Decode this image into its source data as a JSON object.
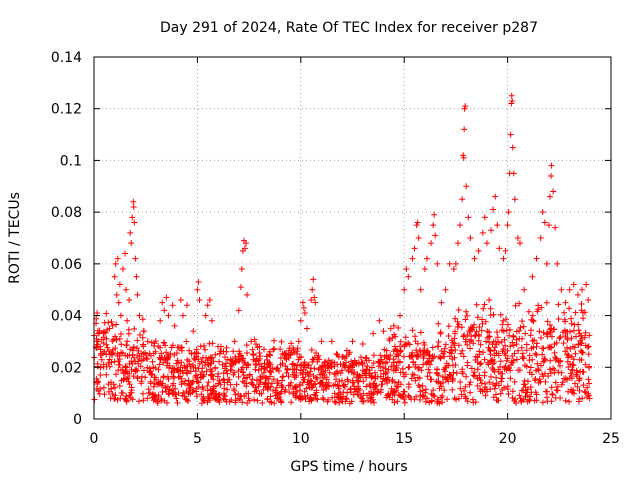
{
  "chart_data": {
    "type": "scatter",
    "title": "Day 291 of 2024, Rate Of TEC Index for receiver p287",
    "xlabel": "GPS time / hours",
    "ylabel": "ROTI / TECUs",
    "xlim": [
      0,
      25
    ],
    "ylim": [
      0,
      0.14
    ],
    "x_ticks": [
      0,
      5,
      10,
      15,
      20,
      25
    ],
    "x_tick_labels": [
      "0",
      "5",
      "10",
      "15",
      "20",
      "25"
    ],
    "y_ticks": [
      0,
      0.02,
      0.04,
      0.06,
      0.08,
      0.1,
      0.12,
      0.14
    ],
    "y_tick_labels": [
      "0",
      "0.02",
      "0.04",
      "0.06",
      "0.08",
      "0.1",
      "0.12",
      "0.14"
    ],
    "grid": true,
    "marker": "plus",
    "color": "#ff0000",
    "series": [
      {
        "points": [
          [
            0.1,
            0.037
          ],
          [
            0.15,
            0.041
          ],
          [
            0.2,
            0.033
          ],
          [
            0.3,
            0.028
          ],
          [
            0.5,
            0.026
          ],
          [
            0.6,
            0.031
          ],
          [
            0.9,
            0.036
          ],
          [
            1.0,
            0.055
          ],
          [
            1.05,
            0.06
          ],
          [
            1.1,
            0.048
          ],
          [
            1.15,
            0.062
          ],
          [
            1.2,
            0.045
          ],
          [
            1.25,
            0.052
          ],
          [
            1.3,
            0.04
          ],
          [
            1.4,
            0.058
          ],
          [
            1.5,
            0.064
          ],
          [
            1.55,
            0.05
          ],
          [
            1.6,
            0.038
          ],
          [
            1.7,
            0.046
          ],
          [
            1.75,
            0.072
          ],
          [
            1.8,
            0.068
          ],
          [
            1.85,
            0.078
          ],
          [
            1.9,
            0.084
          ],
          [
            1.92,
            0.082
          ],
          [
            1.95,
            0.076
          ],
          [
            2.0,
            0.062
          ],
          [
            2.05,
            0.055
          ],
          [
            2.1,
            0.048
          ],
          [
            2.2,
            0.04
          ],
          [
            2.4,
            0.034
          ],
          [
            2.6,
            0.03
          ],
          [
            3.2,
            0.038
          ],
          [
            3.3,
            0.045
          ],
          [
            3.4,
            0.042
          ],
          [
            3.5,
            0.047
          ],
          [
            3.6,
            0.04
          ],
          [
            3.8,
            0.044
          ],
          [
            3.9,
            0.036
          ],
          [
            4.2,
            0.046
          ],
          [
            4.3,
            0.04
          ],
          [
            4.5,
            0.044
          ],
          [
            4.8,
            0.034
          ],
          [
            5.0,
            0.05
          ],
          [
            5.05,
            0.053
          ],
          [
            5.1,
            0.046
          ],
          [
            5.4,
            0.04
          ],
          [
            5.5,
            0.044
          ],
          [
            5.6,
            0.046
          ],
          [
            5.7,
            0.038
          ],
          [
            6.0,
            0.028
          ],
          [
            6.4,
            0.026
          ],
          [
            6.8,
            0.03
          ],
          [
            7.0,
            0.042
          ],
          [
            7.1,
            0.051
          ],
          [
            7.15,
            0.058
          ],
          [
            7.2,
            0.065
          ],
          [
            7.25,
            0.069
          ],
          [
            7.3,
            0.066
          ],
          [
            7.35,
            0.068
          ],
          [
            7.4,
            0.048
          ],
          [
            7.6,
            0.03
          ],
          [
            8.0,
            0.028
          ],
          [
            8.5,
            0.026
          ],
          [
            9.0,
            0.027
          ],
          [
            9.5,
            0.025
          ],
          [
            9.9,
            0.03
          ],
          [
            10.0,
            0.038
          ],
          [
            10.1,
            0.045
          ],
          [
            10.15,
            0.043
          ],
          [
            10.2,
            0.041
          ],
          [
            10.3,
            0.035
          ],
          [
            10.5,
            0.046
          ],
          [
            10.55,
            0.05
          ],
          [
            10.6,
            0.054
          ],
          [
            10.65,
            0.047
          ],
          [
            10.7,
            0.045
          ],
          [
            11.0,
            0.03
          ],
          [
            11.5,
            0.03
          ],
          [
            12.0,
            0.024
          ],
          [
            12.5,
            0.03
          ],
          [
            13.0,
            0.029
          ],
          [
            13.5,
            0.033
          ],
          [
            13.8,
            0.038
          ],
          [
            14.0,
            0.034
          ],
          [
            14.5,
            0.036
          ],
          [
            14.8,
            0.04
          ],
          [
            15.0,
            0.05
          ],
          [
            15.1,
            0.058
          ],
          [
            15.2,
            0.055
          ],
          [
            15.4,
            0.062
          ],
          [
            15.5,
            0.066
          ],
          [
            15.6,
            0.075
          ],
          [
            15.65,
            0.076
          ],
          [
            15.7,
            0.07
          ],
          [
            15.8,
            0.05
          ],
          [
            16.0,
            0.058
          ],
          [
            16.1,
            0.062
          ],
          [
            16.3,
            0.068
          ],
          [
            16.4,
            0.075
          ],
          [
            16.45,
            0.079
          ],
          [
            16.5,
            0.071
          ],
          [
            16.6,
            0.06
          ],
          [
            16.8,
            0.045
          ],
          [
            17.0,
            0.05
          ],
          [
            17.2,
            0.06
          ],
          [
            17.4,
            0.058
          ],
          [
            17.5,
            0.06
          ],
          [
            17.6,
            0.068
          ],
          [
            17.7,
            0.075
          ],
          [
            17.8,
            0.085
          ],
          [
            17.85,
            0.102
          ],
          [
            17.88,
            0.101
          ],
          [
            17.9,
            0.112
          ],
          [
            17.92,
            0.12
          ],
          [
            17.95,
            0.121
          ],
          [
            18.0,
            0.09
          ],
          [
            18.1,
            0.078
          ],
          [
            18.2,
            0.07
          ],
          [
            18.4,
            0.062
          ],
          [
            18.6,
            0.065
          ],
          [
            18.8,
            0.072
          ],
          [
            18.9,
            0.078
          ],
          [
            19.0,
            0.068
          ],
          [
            19.2,
            0.073
          ],
          [
            19.3,
            0.081
          ],
          [
            19.4,
            0.086
          ],
          [
            19.5,
            0.075
          ],
          [
            19.6,
            0.066
          ],
          [
            19.8,
            0.062
          ],
          [
            19.9,
            0.065
          ],
          [
            20.0,
            0.075
          ],
          [
            20.05,
            0.08
          ],
          [
            20.1,
            0.095
          ],
          [
            20.15,
            0.11
          ],
          [
            20.18,
            0.122
          ],
          [
            20.2,
            0.125
          ],
          [
            20.22,
            0.123
          ],
          [
            20.25,
            0.105
          ],
          [
            20.3,
            0.095
          ],
          [
            20.35,
            0.085
          ],
          [
            20.5,
            0.07
          ],
          [
            20.6,
            0.068
          ],
          [
            20.8,
            0.05
          ],
          [
            21.2,
            0.055
          ],
          [
            21.4,
            0.062
          ],
          [
            21.6,
            0.07
          ],
          [
            21.7,
            0.08
          ],
          [
            21.8,
            0.076
          ],
          [
            21.9,
            0.06
          ],
          [
            22.0,
            0.075
          ],
          [
            22.05,
            0.086
          ],
          [
            22.1,
            0.094
          ],
          [
            22.12,
            0.098
          ],
          [
            22.2,
            0.088
          ],
          [
            22.3,
            0.074
          ],
          [
            22.4,
            0.06
          ],
          [
            22.6,
            0.05
          ],
          [
            22.8,
            0.045
          ],
          [
            23.0,
            0.05
          ],
          [
            23.2,
            0.052
          ],
          [
            23.4,
            0.048
          ],
          [
            23.6,
            0.05
          ],
          [
            23.8,
            0.052
          ],
          [
            23.9,
            0.046
          ]
        ]
      }
    ]
  }
}
